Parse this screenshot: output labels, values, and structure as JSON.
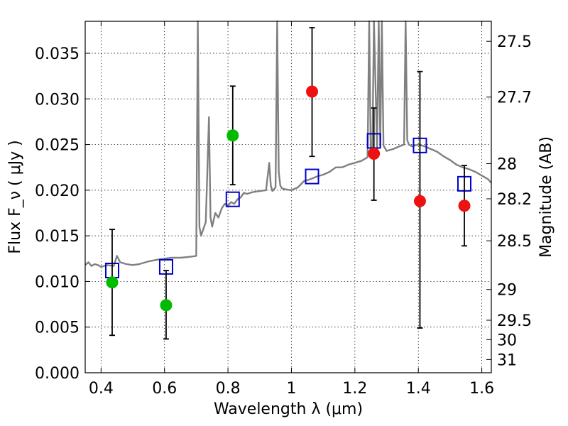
{
  "chart_data": {
    "type": "scatter",
    "xlabel": "Wavelength  λ (μm)",
    "ylabel": "Flux  F_ν  ( μJy )",
    "y2label": "Magnitude (AB)",
    "xlim": [
      0.35,
      1.63
    ],
    "ylim": [
      0.0,
      0.0385
    ],
    "grid": true,
    "x_ticks": [
      0.4,
      0.6,
      0.8,
      1.0,
      1.2,
      1.4,
      1.6
    ],
    "x_tick_labels": [
      "0.4",
      "0.6",
      "0.8",
      "1",
      "1.2",
      "1.4",
      "1.6"
    ],
    "y_ticks": [
      0.0,
      0.005,
      0.01,
      0.015,
      0.02,
      0.025,
      0.03,
      0.035
    ],
    "y_tick_labels": [
      "0.000",
      "0.005",
      "0.010",
      "0.015",
      "0.020",
      "0.025",
      "0.030",
      "0.035"
    ],
    "y2_ticks": [
      27.5,
      27.7,
      28.0,
      28.2,
      28.5,
      29.0,
      29.5,
      30.0,
      31.0
    ],
    "y2_tick_labels": [
      "27.5",
      "27.7",
      "28",
      "28.2",
      "28.5",
      "29",
      "29.5",
      "30",
      "31"
    ],
    "series": [
      {
        "color": "#808080",
        "style": "line",
        "x": [
          0.35,
          0.36,
          0.37,
          0.38,
          0.39,
          0.4,
          0.42,
          0.44,
          0.45,
          0.46,
          0.48,
          0.5,
          0.52,
          0.55,
          0.58,
          0.6,
          0.62,
          0.65,
          0.68,
          0.7,
          0.705,
          0.71,
          0.715,
          0.72,
          0.73,
          0.735,
          0.74,
          0.745,
          0.75,
          0.76,
          0.77,
          0.78,
          0.79,
          0.8,
          0.81,
          0.82,
          0.83,
          0.84,
          0.85,
          0.86,
          0.88,
          0.9,
          0.92,
          0.93,
          0.935,
          0.94,
          0.95,
          0.955,
          0.96,
          0.965,
          0.97,
          0.98,
          1.0,
          1.02,
          1.04,
          1.06,
          1.08,
          1.1,
          1.12,
          1.14,
          1.16,
          1.18,
          1.2,
          1.22,
          1.24,
          1.245,
          1.25,
          1.255,
          1.26,
          1.27,
          1.275,
          1.28,
          1.285,
          1.29,
          1.3,
          1.32,
          1.34,
          1.355,
          1.36,
          1.365,
          1.37,
          1.38,
          1.4,
          1.42,
          1.44,
          1.46,
          1.48,
          1.5,
          1.52,
          1.54,
          1.56,
          1.58,
          1.6,
          1.62,
          1.63
        ],
        "y": [
          0.0118,
          0.0121,
          0.0117,
          0.0119,
          0.0118,
          0.0116,
          0.0118,
          0.0117,
          0.0128,
          0.0121,
          0.0119,
          0.0118,
          0.0119,
          0.0122,
          0.0124,
          0.0125,
          0.0126,
          0.0126,
          0.0127,
          0.0128,
          0.0385,
          0.016,
          0.015,
          0.0155,
          0.0165,
          0.022,
          0.028,
          0.017,
          0.016,
          0.0175,
          0.017,
          0.018,
          0.0185,
          0.0183,
          0.0187,
          0.0185,
          0.019,
          0.0192,
          0.0197,
          0.0196,
          0.0198,
          0.0199,
          0.02,
          0.023,
          0.0205,
          0.0199,
          0.0203,
          0.0385,
          0.022,
          0.0205,
          0.0202,
          0.0201,
          0.02,
          0.0203,
          0.021,
          0.0212,
          0.0215,
          0.0217,
          0.022,
          0.0225,
          0.0225,
          0.0228,
          0.023,
          0.0232,
          0.0236,
          0.0385,
          0.0238,
          0.024,
          0.0385,
          0.0245,
          0.0385,
          0.0248,
          0.0385,
          0.0249,
          0.0243,
          0.0245,
          0.0248,
          0.025,
          0.0385,
          0.0255,
          0.025,
          0.0248,
          0.025,
          0.0248,
          0.0245,
          0.0242,
          0.0237,
          0.0233,
          0.0228,
          0.0225,
          0.0223,
          0.022,
          0.0216,
          0.0212,
          0.0208
        ]
      },
      {
        "color": "#0000cc",
        "style": "open-square",
        "x": [
          0.435,
          0.605,
          0.815,
          1.065,
          1.26,
          1.405,
          1.545
        ],
        "y": [
          0.0112,
          0.0116,
          0.019,
          0.0215,
          0.0254,
          0.0249,
          0.0207
        ]
      },
      {
        "color": "#00bb00",
        "style": "filled-circle",
        "x": [
          0.435,
          0.605,
          0.815
        ],
        "y": [
          0.0099,
          0.0074,
          0.026
        ],
        "err_low": [
          0.0041,
          0.0037,
          0.0206
        ],
        "err_high": [
          0.0157,
          0.0112,
          0.0314
        ]
      },
      {
        "color": "#ee1111",
        "style": "filled-circle",
        "x": [
          1.065,
          1.26,
          1.405,
          1.545
        ],
        "y": [
          0.0308,
          0.024,
          0.0188,
          0.0183
        ],
        "err_low": [
          0.0237,
          0.0189,
          0.0049,
          0.0139
        ],
        "err_high": [
          0.0378,
          0.029,
          0.033,
          0.0227
        ]
      }
    ]
  }
}
